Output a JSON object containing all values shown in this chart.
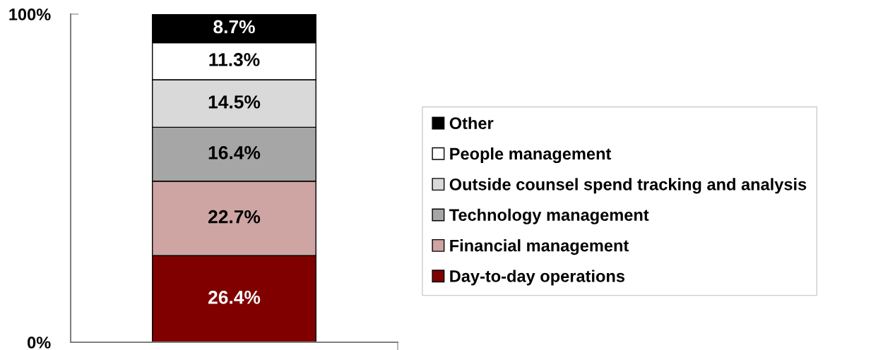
{
  "chart_data": {
    "type": "bar",
    "stacked": true,
    "categories": [
      null
    ],
    "series": [
      {
        "name": "Day-to-day operations",
        "color": "#800000",
        "values": [
          26.4
        ],
        "value_labels": [
          "26.4%"
        ]
      },
      {
        "name": "Financial management",
        "color": "#cea5a3",
        "values": [
          22.7
        ],
        "value_labels": [
          "22.7%"
        ]
      },
      {
        "name": "Technology management",
        "color": "#a6a6a6",
        "values": [
          16.4
        ],
        "value_labels": [
          "16.4%"
        ]
      },
      {
        "name": "Outside counsel spend tracking and analysis",
        "color": "#d9d9d9",
        "values": [
          14.5
        ],
        "value_labels": [
          "14.5%"
        ]
      },
      {
        "name": "People management",
        "color": "#ffffff",
        "values": [
          11.3
        ],
        "value_labels": [
          "11.3%"
        ]
      },
      {
        "name": "Other",
        "color": "#000000",
        "values": [
          8.7
        ],
        "value_labels": [
          "8.7%"
        ]
      }
    ],
    "ylim": [
      0,
      100
    ],
    "yticks": [
      {
        "value": 0,
        "label": "0%"
      },
      {
        "value": 100,
        "label": "100%"
      }
    ],
    "legend": "right",
    "grid": false
  }
}
